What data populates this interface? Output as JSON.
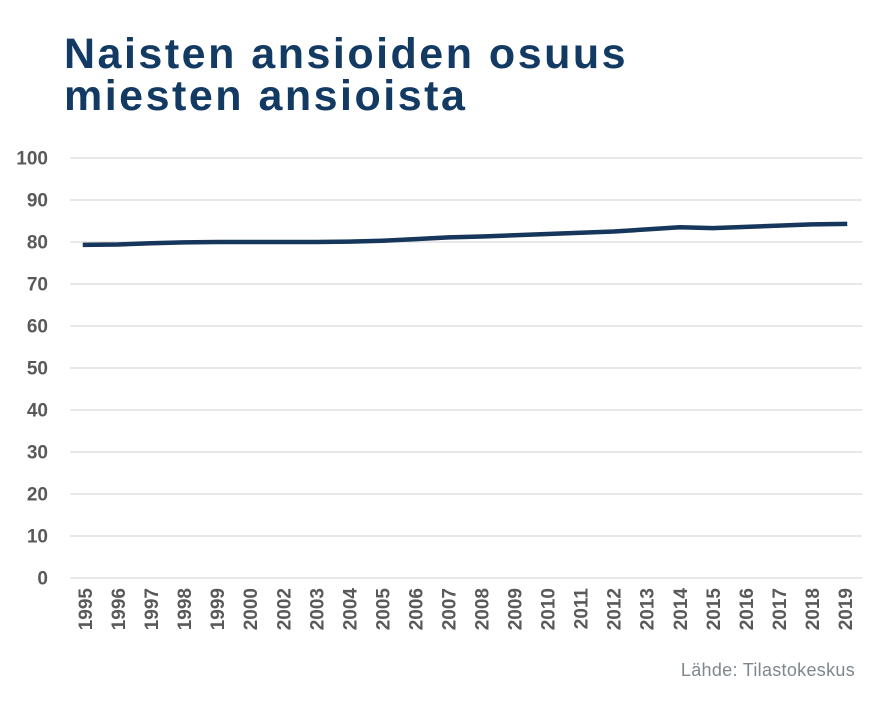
{
  "header": {
    "title_line1": "Naisten ansioiden osuus",
    "title_line2": "miesten ansioista"
  },
  "chart_data": {
    "type": "line",
    "title": "Naisten ansioiden osuus miesten ansioista",
    "categories": [
      "1995",
      "1996",
      "1997",
      "1998",
      "1999",
      "2000",
      "2002",
      "2003",
      "2004",
      "2005",
      "2006",
      "2007",
      "2008",
      "2009",
      "2010",
      "2011",
      "2012",
      "2013",
      "2014",
      "2015",
      "2016",
      "2017",
      "2018",
      "2019"
    ],
    "series": [
      {
        "name": "Naisten ansioiden osuus miesten ansioista, %",
        "values": [
          79.3,
          79.4,
          79.7,
          79.9,
          80.0,
          80.0,
          80.0,
          80.0,
          80.1,
          80.3,
          80.7,
          81.1,
          81.3,
          81.6,
          81.9,
          82.2,
          82.5,
          83.0,
          83.5,
          83.3,
          83.6,
          83.9,
          84.2,
          84.3
        ]
      }
    ],
    "xlabel": "",
    "ylabel": "",
    "ylim": [
      0,
      100
    ],
    "ytick_interval": 10,
    "yticks": [
      0,
      10,
      20,
      30,
      40,
      50,
      60,
      70,
      80,
      90,
      100
    ],
    "grid": true,
    "legend": "none",
    "x_label_rotation": -90
  },
  "style": {
    "title_color": "#123a63",
    "line_color": "#16365c",
    "grid_color": "#d9d9d9",
    "tick_label_color": "#595959",
    "source_color": "#7d878d",
    "background": "#ffffff"
  },
  "footer": {
    "source_label": "Lähde: Tilastokeskus"
  }
}
